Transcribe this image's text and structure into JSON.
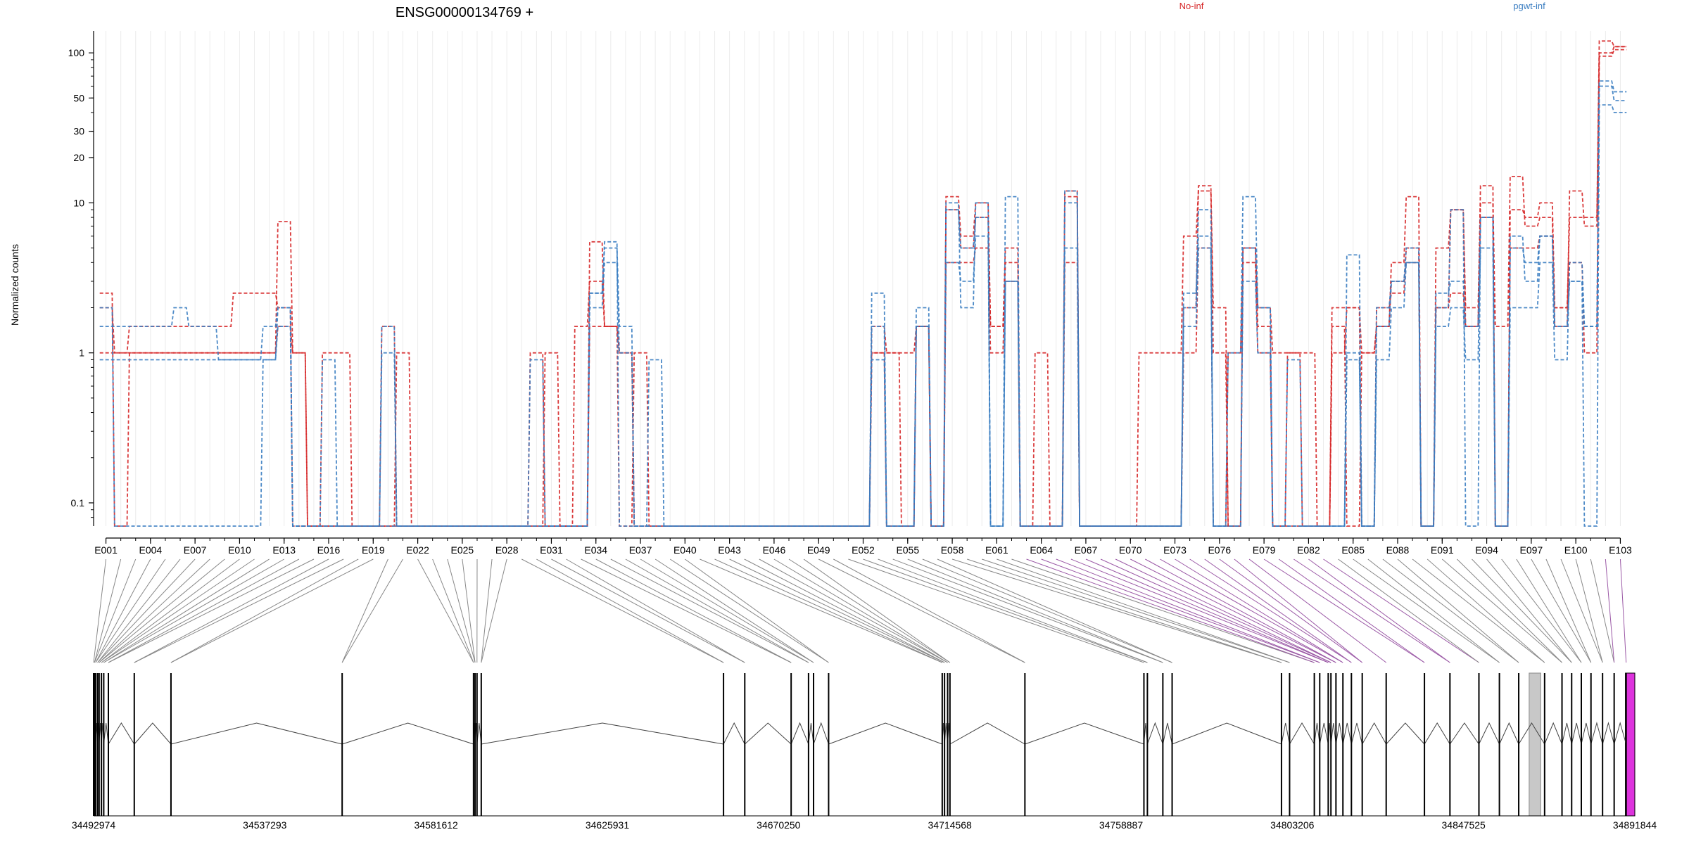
{
  "chart_data": [
    {
      "type": "line",
      "title": "ENSG00000134769 +",
      "ylabel": "Normalized counts",
      "xlabel": "",
      "yscale": "log",
      "ylim": [
        0.07,
        140
      ],
      "yticks": [
        "100",
        "50",
        "30",
        "20",
        "10",
        "1",
        "0.1"
      ],
      "ytick_values": [
        100,
        50,
        30,
        20,
        10,
        1,
        0.1
      ],
      "n_exons": 103,
      "xtick_labels": [
        "E001",
        "E004",
        "E007",
        "E010",
        "E013",
        "E016",
        "E019",
        "E022",
        "E025",
        "E028",
        "E031",
        "E034",
        "E037",
        "E040",
        "E043",
        "E046",
        "E049",
        "E052",
        "E055",
        "E058",
        "E061",
        "E064",
        "E067",
        "E070",
        "E073",
        "E076",
        "E079",
        "E082",
        "E085",
        "E088",
        "E091",
        "E094",
        "E097",
        "E100",
        "E103"
      ],
      "grid": true,
      "legend": "top",
      "series": [
        {
          "name": "No-inf",
          "color": "#d62728",
          "values": [
            2.5,
            0.07,
            1,
            1,
            1,
            1,
            1,
            1,
            1,
            1,
            1,
            1,
            7.5,
            1,
            0.07,
            0.07,
            0.07,
            0.07,
            0.07,
            0.07,
            0.07,
            0.07,
            0.07,
            0.07,
            0.07,
            0.07,
            0.07,
            0.07,
            0.07,
            0.07,
            0.07,
            0.07,
            0.07,
            5.5,
            1.5,
            1,
            0.07,
            0.07,
            0.07,
            0.07,
            0.07,
            0.07,
            0.07,
            0.07,
            0.07,
            0.07,
            0.07,
            0.07,
            0.07,
            0.07,
            0.07,
            0.07,
            1,
            1,
            0.07,
            1.5,
            0.07,
            11,
            6,
            10,
            1.5,
            3,
            0.07,
            0.07,
            0.07,
            12,
            0.07,
            0.07,
            0.07,
            0.07,
            0.07,
            0.07,
            0.07,
            2,
            13,
            2,
            0.07,
            5,
            2,
            1,
            1,
            0.07,
            0.07,
            2,
            2,
            0.07,
            2,
            2.5,
            5,
            0.07,
            2,
            9,
            1.5,
            13,
            0.07,
            9,
            8,
            10,
            2,
            8,
            8,
            120,
            110
          ]
        },
        {
          "name": "No-inf",
          "color": "#d62728",
          "values": [
            2,
            1,
            1.5,
            1.5,
            1.5,
            1.5,
            1.5,
            1.5,
            1.5,
            2.5,
            2.5,
            2.5,
            2,
            0.07,
            0.07,
            1,
            1,
            0.07,
            0.07,
            1.5,
            0.07,
            0.07,
            0.07,
            0.07,
            0.07,
            0.07,
            0.07,
            0.07,
            0.07,
            0.07,
            1,
            0.07,
            1.5,
            3,
            1.5,
            0.07,
            1,
            0.07,
            0.07,
            0.07,
            0.07,
            0.07,
            0.07,
            0.07,
            0.07,
            0.07,
            0.07,
            0.07,
            0.07,
            0.07,
            0.07,
            0.07,
            1.5,
            1,
            1,
            1.5,
            0.07,
            9,
            5,
            8,
            1.5,
            5,
            0.07,
            1,
            0.07,
            11,
            0.07,
            0.07,
            0.07,
            0.07,
            1,
            1,
            1,
            6,
            12,
            1,
            0.07,
            5,
            1.5,
            0.07,
            1,
            1,
            0.07,
            1,
            2,
            1,
            1.5,
            4,
            11,
            0.07,
            5,
            9,
            2,
            10,
            1.5,
            15,
            7,
            8,
            1.5,
            12,
            7,
            95,
            105
          ]
        },
        {
          "name": "No-inf",
          "color": "#d62728",
          "values": [
            1,
            1,
            1,
            1,
            1,
            1,
            1,
            1,
            1,
            1,
            1,
            1,
            1.5,
            1,
            0.07,
            0.07,
            0.07,
            0.07,
            0.07,
            0.07,
            1,
            0.07,
            0.07,
            0.07,
            0.07,
            0.07,
            0.07,
            0.07,
            0.07,
            1,
            0.07,
            0.07,
            0.07,
            1.5,
            1.5,
            1,
            0.07,
            0.07,
            0.07,
            0.07,
            0.07,
            0.07,
            0.07,
            0.07,
            0.07,
            0.07,
            0.07,
            0.07,
            0.07,
            0.07,
            0.07,
            0.07,
            1,
            0.07,
            0.07,
            1.5,
            0.07,
            4,
            4,
            5,
            1,
            4,
            0.07,
            0.07,
            0.07,
            4,
            0.07,
            0.07,
            0.07,
            0.07,
            0.07,
            0.07,
            0.07,
            1,
            5,
            0.07,
            1,
            4,
            1,
            0.07,
            0.07,
            0.07,
            0.07,
            1.5,
            0.07,
            1,
            1.5,
            3,
            4,
            0.07,
            2,
            2.5,
            1.5,
            8,
            0.07,
            5,
            5,
            6,
            2,
            4,
            1,
            100,
            110
          ]
        },
        {
          "name": "pgwt-inf",
          "color": "#3a7dc1",
          "values": [
            2,
            0.07,
            0.07,
            0.07,
            0.07,
            0.07,
            0.07,
            0.07,
            0.07,
            0.07,
            0.07,
            0.9,
            1.5,
            0.07,
            0.07,
            0.07,
            0.07,
            0.07,
            0.07,
            0.07,
            0.07,
            0.07,
            0.07,
            0.07,
            0.07,
            0.07,
            0.07,
            0.07,
            0.07,
            0.07,
            0.07,
            0.07,
            0.07,
            2.5,
            5.5,
            0.07,
            0.07,
            0.07,
            0.07,
            0.07,
            0.07,
            0.07,
            0.07,
            0.07,
            0.07,
            0.07,
            0.07,
            0.07,
            0.07,
            0.07,
            0.07,
            0.07,
            1.5,
            0.07,
            0.07,
            1.5,
            0.07,
            9,
            5,
            8,
            0.07,
            3,
            0.07,
            0.07,
            0.07,
            12,
            0.07,
            0.07,
            0.07,
            0.07,
            0.07,
            0.07,
            0.07,
            2,
            9,
            0.07,
            0.07,
            5,
            2,
            0.07,
            0.07,
            0.07,
            0.07,
            0.07,
            1,
            0.07,
            1.5,
            3,
            4,
            0.07,
            2,
            9,
            0.07,
            8,
            0.07,
            5,
            4,
            6,
            1.5,
            3,
            1.5,
            65,
            55
          ]
        },
        {
          "name": "pgwt-inf",
          "color": "#3a7dc1",
          "values": [
            1.5,
            1.5,
            1.5,
            1.5,
            1.5,
            2,
            1.5,
            1.5,
            0.9,
            0.9,
            0.9,
            1.5,
            2,
            0.07,
            0.07,
            0.9,
            0.07,
            0.07,
            0.07,
            1.5,
            0.07,
            0.07,
            0.07,
            0.07,
            0.07,
            0.07,
            0.07,
            0.07,
            0.07,
            0.9,
            0.07,
            0.07,
            0.07,
            2.5,
            5,
            1.5,
            0.07,
            0.9,
            0.07,
            0.07,
            0.07,
            0.07,
            0.07,
            0.07,
            0.07,
            0.07,
            0.07,
            0.07,
            0.07,
            0.07,
            0.07,
            0.07,
            2.5,
            0.07,
            0.07,
            2,
            0.07,
            10,
            2,
            10,
            0.07,
            11,
            0.07,
            0.07,
            0.07,
            10,
            0.07,
            0.07,
            0.07,
            0.07,
            0.07,
            0.07,
            0.07,
            2.5,
            6,
            0.07,
            1,
            11,
            2,
            0.07,
            0.9,
            0.07,
            0.07,
            0.07,
            4.5,
            0.07,
            2,
            3,
            5,
            0.07,
            2.5,
            3,
            1.5,
            8,
            0.07,
            6,
            3,
            6,
            1.5,
            3,
            0.07,
            45,
            40
          ]
        },
        {
          "name": "pgwt-inf",
          "color": "#3a7dc1",
          "values": [
            0.9,
            0.9,
            0.9,
            0.9,
            0.9,
            0.9,
            0.9,
            0.9,
            0.9,
            0.9,
            0.9,
            0.9,
            2,
            0.07,
            0.07,
            0.07,
            0.07,
            0.07,
            0.07,
            1,
            0.07,
            0.07,
            0.07,
            0.07,
            0.07,
            0.07,
            0.07,
            0.07,
            0.07,
            0.07,
            0.07,
            0.07,
            0.07,
            2,
            4,
            1,
            0.07,
            0.07,
            0.07,
            0.07,
            0.07,
            0.07,
            0.07,
            0.07,
            0.07,
            0.07,
            0.07,
            0.07,
            0.07,
            0.07,
            0.07,
            0.07,
            0.9,
            0.07,
            0.07,
            1.5,
            0.07,
            4,
            3,
            6,
            0.07,
            3,
            0.07,
            0.07,
            0.07,
            5,
            0.07,
            0.07,
            0.07,
            0.07,
            0.07,
            0.07,
            0.07,
            1.5,
            5,
            0.07,
            0.07,
            3,
            1,
            0.07,
            0.07,
            0.07,
            0.07,
            0.07,
            0.9,
            0.07,
            0.9,
            2,
            4,
            0.07,
            1.5,
            2,
            0.9,
            5,
            0.07,
            2,
            2,
            4,
            0.9,
            4,
            1.5,
            60,
            48
          ]
        }
      ]
    },
    {
      "type": "gene-model",
      "genomic_ticks": [
        "34492974",
        "34537293",
        "34581612",
        "34625931",
        "34670250",
        "34714568",
        "34758887",
        "34803206",
        "34847525",
        "34891844"
      ],
      "exon_positions": [
        34492974,
        34493200,
        34493500,
        34494000,
        34494400,
        34495000,
        34495600,
        34496800,
        34503500,
        34513000,
        34557300,
        34591300,
        34591700,
        34592200,
        34593300,
        34656000,
        34661500,
        34673500,
        34678000,
        34679300,
        34683200,
        34712600,
        34713200,
        34714000,
        34714600,
        34734000,
        34764800,
        34765700,
        34769700,
        34772100,
        34800400,
        34802500,
        34808900,
        34810300,
        34812500,
        34813200,
        34814500,
        34816300,
        34818500,
        34821300,
        34827500,
        34837400,
        34844000,
        34851500,
        34856800,
        34861800,
        34868500,
        34873000,
        34875500,
        34878000,
        34880500,
        34883500,
        34886500,
        34889600
      ],
      "shaded_region": [
        34864500,
        34867500
      ],
      "highlight_region": [
        34889400,
        34891844
      ],
      "highlight_color": "#dd33dd"
    }
  ]
}
